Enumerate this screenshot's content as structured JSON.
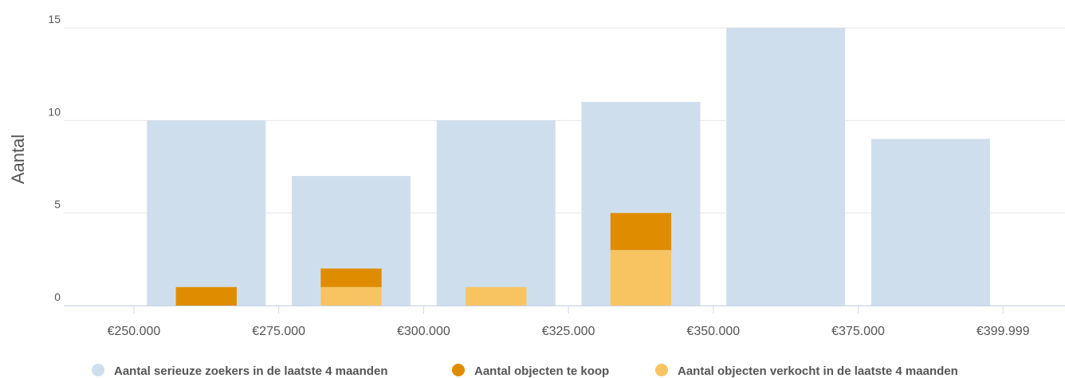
{
  "chart_data": {
    "type": "histogram",
    "ylabel": "Aantal",
    "bins": [
      250000,
      275000,
      300000,
      325000,
      350000,
      375000,
      400000
    ],
    "xlim": [
      237900,
      410700
    ],
    "xticks": [
      {
        "value": 250000,
        "label": "€250.000"
      },
      {
        "value": 275000,
        "label": "€275.000"
      },
      {
        "value": 300000,
        "label": "€300.000"
      },
      {
        "value": 325000,
        "label": "€325.000"
      },
      {
        "value": 350000,
        "label": "€350.000"
      },
      {
        "value": 375000,
        "label": "€375.000"
      },
      {
        "value": 399999,
        "label": "€399.999"
      }
    ],
    "ylim": [
      0,
      15
    ],
    "yticks": [
      0,
      5,
      10,
      15
    ],
    "grid": true,
    "series": [
      {
        "name": "Aantal serieuze zoekers in de laatste 4 maanden",
        "color": "#cfdeec",
        "values": [
          10,
          7,
          10,
          11,
          15,
          9
        ]
      },
      {
        "name": "Aantal objecten te koop",
        "color": "#e08c00",
        "values": [
          1,
          1,
          0,
          2,
          0,
          0
        ]
      },
      {
        "name": "Aantal objecten verkocht in de laatste 4 maanden",
        "color": "#f8c462",
        "values": [
          0,
          1,
          1,
          3,
          0,
          0
        ]
      }
    ]
  }
}
